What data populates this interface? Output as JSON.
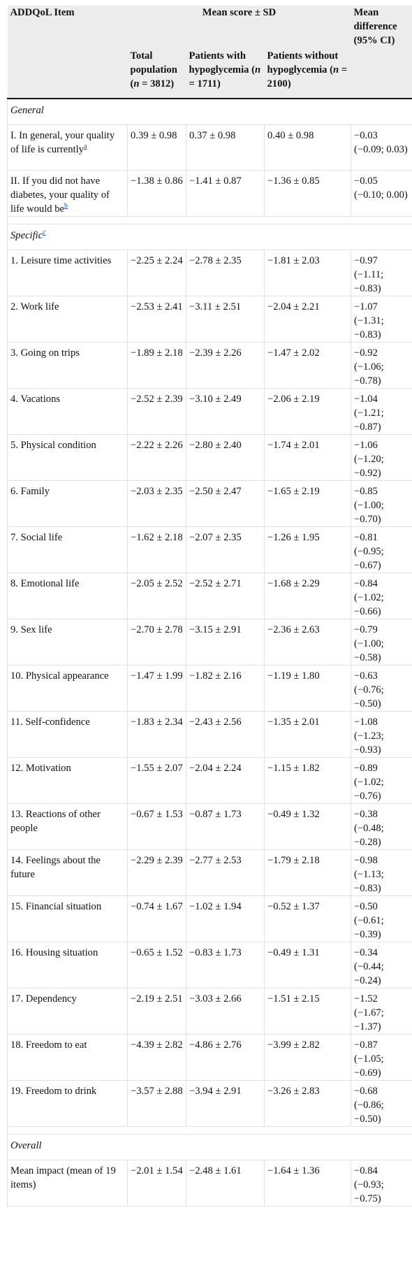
{
  "header": {
    "item_col": "ADDQoL Item",
    "mean_group": "Mean score ± SD",
    "diff_col": "Mean difference (95% CI)",
    "sub": [
      {
        "pre": "Total population (",
        "n": "n",
        "post": " = 3812)"
      },
      {
        "pre": "Patients with hypoglycemia (",
        "n": "n",
        "post": " = 1711)"
      },
      {
        "pre": "Patients without hypoglycemia (",
        "n": "n",
        "post": " = 2100)"
      }
    ]
  },
  "sections": {
    "general": "General",
    "specific": "Specific",
    "specific_fn": "c",
    "overall": "Overall"
  },
  "general_rows": [
    {
      "item": "I. In general, your quality of life is currently",
      "fn": "a",
      "total": "0.39 ± 0.98",
      "with": "0.37 ± 0.98",
      "without": "0.40 ± 0.98",
      "diff": "−0.03 (−0.09; 0.03)"
    },
    {
      "item": "II. If you did not have diabetes, your quality of life would be",
      "fn": "b",
      "total": "−1.38 ± 0.86",
      "with": "−1.41 ± 0.87",
      "without": "−1.36 ± 0.85",
      "diff": "−0.05 (−0.10; 0.00)"
    }
  ],
  "specific_rows": [
    {
      "item": "1. Leisure time activities",
      "total": "−2.25 ± 2.24",
      "with": "−2.78 ± 2.35",
      "without": "−1.81 ± 2.03",
      "diff": "−0.97 (−1.11; −0.83)"
    },
    {
      "item": "2. Work life",
      "total": "−2.53 ± 2.41",
      "with": "−3.11 ± 2.51",
      "without": "−2.04 ± 2.21",
      "diff": "−1.07 (−1.31; −0.83)"
    },
    {
      "item": "3. Going on trips",
      "total": "−1.89 ± 2.18",
      "with": "−2.39 ± 2.26",
      "without": "−1.47 ± 2.02",
      "diff": "−0.92 (−1.06; −0.78)"
    },
    {
      "item": "4. Vacations",
      "total": "−2.52 ± 2.39",
      "with": "−3.10 ± 2.49",
      "without": "−2.06 ± 2.19",
      "diff": "−1.04 (−1.21; −0.87)"
    },
    {
      "item": "5. Physical condition",
      "total": "−2.22 ± 2.26",
      "with": "−2.80 ± 2.40",
      "without": "−1.74 ± 2.01",
      "diff": "−1.06 (−1.20; −0.92)"
    },
    {
      "item": "6. Family",
      "total": "−2.03 ± 2.35",
      "with": "−2.50 ± 2.47",
      "without": "−1.65 ± 2.19",
      "diff": "−0.85 (−1.00; −0.70)"
    },
    {
      "item": "7. Social life",
      "total": "−1.62 ± 2.18",
      "with": "−2.07 ± 2.35",
      "without": "−1.26 ± 1.95",
      "diff": "−0.81 (−0.95; −0.67)"
    },
    {
      "item": "8. Emotional life",
      "total": "−2.05 ± 2.52",
      "with": "−2.52 ± 2.71",
      "without": "−1.68 ± 2.29",
      "diff": "−0.84 (−1.02; −0.66)"
    },
    {
      "item": "9. Sex life",
      "total": "−2.70 ± 2.78",
      "with": "−3.15 ± 2.91",
      "without": "−2.36 ± 2.63",
      "diff": "−0.79 (−1.00; −0.58)"
    },
    {
      "item": "10. Physical appearance",
      "total": "−1.47 ± 1.99",
      "with": "−1.82 ± 2.16",
      "without": "−1.19 ± 1.80",
      "diff": "−0.63 (−0.76; −0.50)"
    },
    {
      "item": "11. Self-confidence",
      "total": "−1.83 ± 2.34",
      "with": "−2.43 ± 2.56",
      "without": "−1.35 ± 2.01",
      "diff": "−1.08 (−1.23; −0.93)"
    },
    {
      "item": "12. Motivation",
      "total": "−1.55 ± 2.07",
      "with": "−2.04 ± 2.24",
      "without": "−1.15 ± 1.82",
      "diff": "−0.89 (−1.02; −0.76)"
    },
    {
      "item": "13. Reactions of other people",
      "total": "−0.67 ± 1.53",
      "with": "−0.87 ± 1.73",
      "without": "−0.49 ± 1.32",
      "diff": "−0.38 (−0.48; −0.28)"
    },
    {
      "item": "14. Feelings about the future",
      "total": "−2.29 ± 2.39",
      "with": "−2.77 ± 2.53",
      "without": "−1.79 ± 2.18",
      "diff": "−0.98 (−1.13; −0.83)"
    },
    {
      "item": "15. Financial situation",
      "total": "−0.74 ± 1.67",
      "with": "−1.02 ± 1.94",
      "without": "−0.52 ± 1.37",
      "diff": "−0.50 (−0.61; −0.39)"
    },
    {
      "item": "16. Housing situation",
      "total": "−0.65 ± 1.52",
      "with": "−0.83 ± 1.73",
      "without": "−0.49 ± 1.31",
      "diff": "−0.34 (−0.44; −0.24)"
    },
    {
      "item": "17. Dependency",
      "total": "−2.19 ± 2.51",
      "with": "−3.03 ± 2.66",
      "without": "−1.51 ± 2.15",
      "diff": "−1.52 (−1.67; −1.37)"
    },
    {
      "item": "18. Freedom to eat",
      "total": "−4.39 ± 2.82",
      "with": "−4.86 ± 2.76",
      "without": "−3.99 ± 2.82",
      "diff": "−0.87 (−1.05; −0.69)"
    },
    {
      "item": "19. Freedom to drink",
      "total": "−3.57 ± 2.88",
      "with": "−3.94 ± 2.91",
      "without": "−3.26 ± 2.83",
      "diff": "−0.68 (−0.86; −0.50)"
    }
  ],
  "overall_rows": [
    {
      "item": "Mean impact (mean of 19 items)",
      "total": "−2.01 ± 1.54",
      "with": "−2.48 ± 1.61",
      "without": "−1.64 ± 1.36",
      "diff": "−0.84 (−0.93; −0.75)"
    }
  ]
}
